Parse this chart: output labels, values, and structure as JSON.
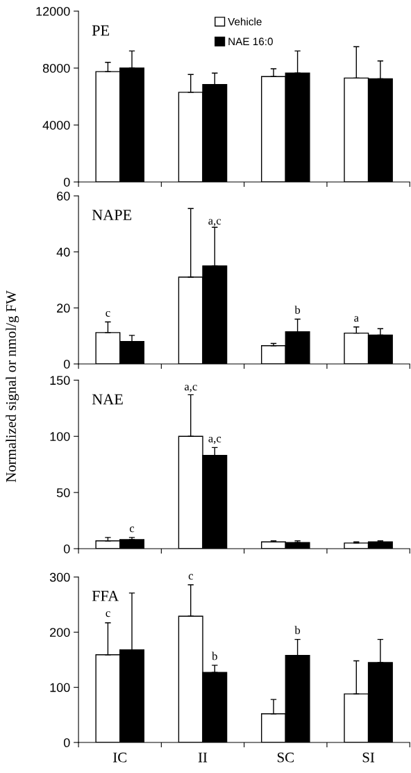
{
  "chart_data": [
    {
      "type": "bar",
      "title": "PE",
      "categories": [
        "IC",
        "II",
        "SC",
        "SI"
      ],
      "ylim": [
        0,
        12000
      ],
      "yticks": [
        0,
        4000,
        8000,
        12000
      ],
      "tick_labels": "y",
      "legend": "top",
      "grid": false,
      "series": [
        {
          "name": "Vehicle",
          "color": "#ffffff",
          "values": [
            7750,
            6300,
            7400,
            7300
          ],
          "errors": [
            650,
            1250,
            550,
            2200
          ]
        },
        {
          "name": "NAE 16:0",
          "color": "#000000",
          "values": [
            8000,
            6850,
            7650,
            7250
          ],
          "errors": [
            1200,
            800,
            1550,
            1250
          ]
        }
      ]
    },
    {
      "type": "bar",
      "title": "NAPE",
      "categories": [
        "IC",
        "II",
        "SC",
        "SI"
      ],
      "ylim": [
        0,
        60
      ],
      "yticks": [
        0,
        20,
        40,
        60
      ],
      "tick_labels": "y",
      "grid": false,
      "series": [
        {
          "color": "#ffffff",
          "values": [
            11.2,
            31,
            6.5,
            11
          ],
          "errors": [
            3.8,
            24.5,
            0.8,
            2.2
          ]
        },
        {
          "color": "#000000",
          "values": [
            8,
            35,
            11.5,
            10.3
          ],
          "errors": [
            2.2,
            13.8,
            4.5,
            2.3
          ]
        }
      ],
      "annotations": [
        {
          "text": "c",
          "x": "IC",
          "y": 11.2
        },
        "a,c",
        {
          "text": "b",
          "x": "SC",
          "y": 11.5
        },
        {
          "text": "a",
          "x": "SI",
          "y": 11
        }
      ]
    },
    {
      "type": "bar",
      "title": "NAE",
      "ylabel": "Normalized signal or nmol/g FW",
      "categories": [
        "IC",
        "II",
        "SC",
        "SI"
      ],
      "ylim": [
        0,
        150
      ],
      "yticks": [
        0,
        50,
        100,
        150
      ],
      "tick_labels": "y",
      "grid": false,
      "series": [
        {
          "color": "#ffffff",
          "values": [
            7,
            100,
            6,
            5
          ],
          "errors": [
            3,
            37,
            1,
            1
          ]
        },
        {
          "color": "#000000",
          "values": [
            8,
            83,
            5.5,
            6
          ],
          "errors": [
            2,
            7,
            1.5,
            1
          ]
        }
      ],
      "annotations": [
        {
          "text": "c",
          "x": "IC",
          "y": 8
        },
        "a,c",
        {
          "text": "a,c",
          "x": "II",
          "y": 83
        }
      ]
    },
    {
      "type": "bar",
      "title": "FFA",
      "categories": [
        "IC",
        "II",
        "SC",
        "SI"
      ],
      "ylim": [
        0,
        300
      ],
      "yticks": [
        0,
        100,
        200,
        300
      ],
      "grid": false,
      "series": [
        {
          "color": "#ffffff",
          "values": [
            159,
            229,
            52,
            88
          ],
          "errors": [
            58,
            57,
            26,
            60
          ]
        },
        {
          "color": "#000000",
          "values": [
            168,
            127,
            158,
            145
          ],
          "errors": [
            103,
            13,
            29,
            42
          ]
        }
      ],
      "annotations": [
        "c",
        "c",
        {
          "text": "b",
          "x": "II",
          "y": 127
        },
        {
          "text": "b",
          "x": "SC",
          "y": 158
        }
      ]
    }
  ]
}
